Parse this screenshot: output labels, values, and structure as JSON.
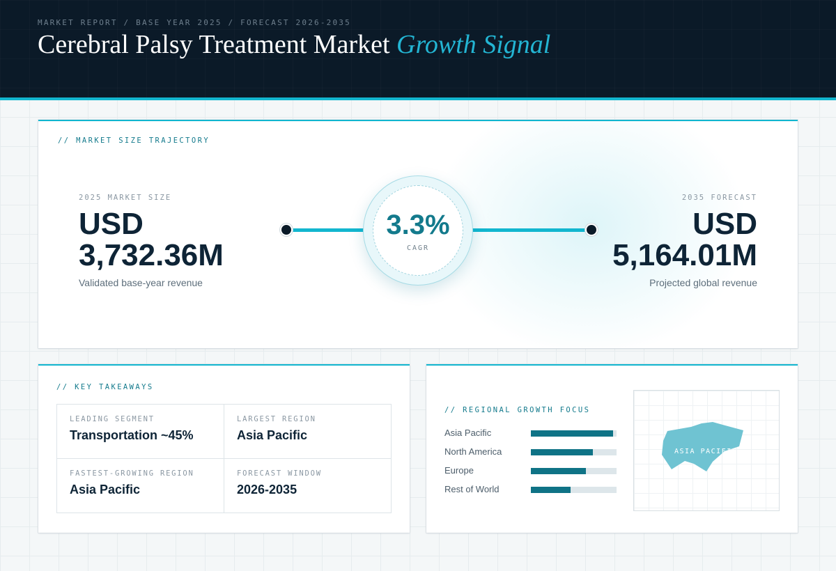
{
  "header": {
    "breadcrumb": "MARKET REPORT / BASE YEAR 2025 / FORECAST 2026-2035",
    "title_main": "Cerebral Palsy Treatment Market",
    "title_accent": "Growth Signal"
  },
  "trajectory": {
    "label": "// MARKET SIZE TRAJECTORY",
    "start": {
      "caption": "2025 MARKET SIZE",
      "currency": "USD",
      "value": "3,732.36M",
      "note": "Validated base-year revenue"
    },
    "cagr": {
      "value": "3.3%",
      "label": "CAGR"
    },
    "end": {
      "caption": "2035 FORECAST",
      "currency": "USD",
      "value": "5,164.01M",
      "note": "Projected global revenue"
    }
  },
  "takeaways": {
    "label": "// KEY TAKEAWAYS",
    "items": [
      {
        "caption": "LEADING SEGMENT",
        "value": "Transportation ~45%"
      },
      {
        "caption": "LARGEST REGION",
        "value": "Asia Pacific"
      },
      {
        "caption": "FASTEST-GROWING REGION",
        "value": "Asia Pacific"
      },
      {
        "caption": "FORECAST WINDOW",
        "value": "2026-2035"
      }
    ]
  },
  "regional": {
    "label": "// REGIONAL GROWTH FOCUS",
    "rows": [
      {
        "name": "Asia Pacific",
        "level": 0.96
      },
      {
        "name": "North America",
        "level": 0.72
      },
      {
        "name": "Europe",
        "level": 0.64
      },
      {
        "name": "Rest of World",
        "level": 0.46
      }
    ],
    "map_label": "ASIA PACIFIC"
  },
  "colors": {
    "accent": "#12b6cf",
    "bar_fill": "#0f7386",
    "header_bg": "#0b1a28",
    "map_shape": "#6fc3d2"
  }
}
